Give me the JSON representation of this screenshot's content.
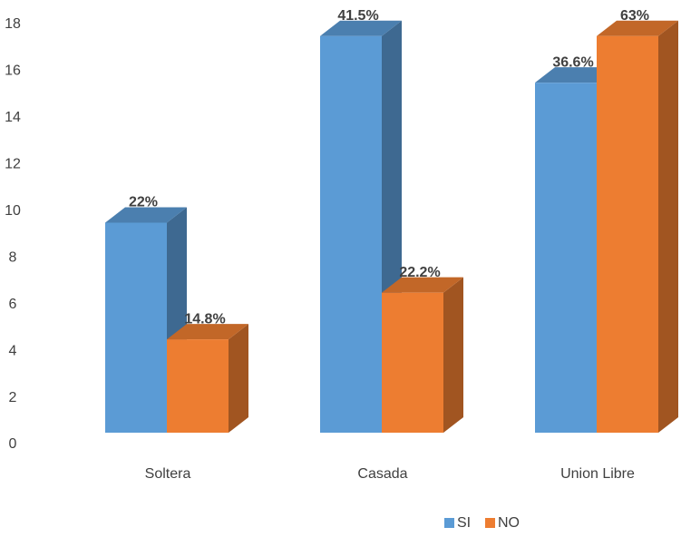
{
  "chart_data": {
    "type": "bar3d",
    "categories": [
      "Soltera",
      "Casada",
      "Union Libre"
    ],
    "series": [
      {
        "name": "SI",
        "color": "#5b9bd5",
        "values": [
          9,
          17,
          15
        ],
        "percent_labels": [
          "22%",
          "41.5%",
          "36.6%"
        ]
      },
      {
        "name": "NO",
        "color": "#ed7d31",
        "values": [
          4,
          6,
          17
        ],
        "percent_labels": [
          "14.8%",
          "22.2%",
          "63%"
        ]
      }
    ],
    "ylim": [
      0,
      18
    ],
    "yticks": [
      0,
      2,
      4,
      6,
      8,
      10,
      12,
      14,
      16,
      18
    ],
    "grid": false,
    "legend": "bottom"
  }
}
